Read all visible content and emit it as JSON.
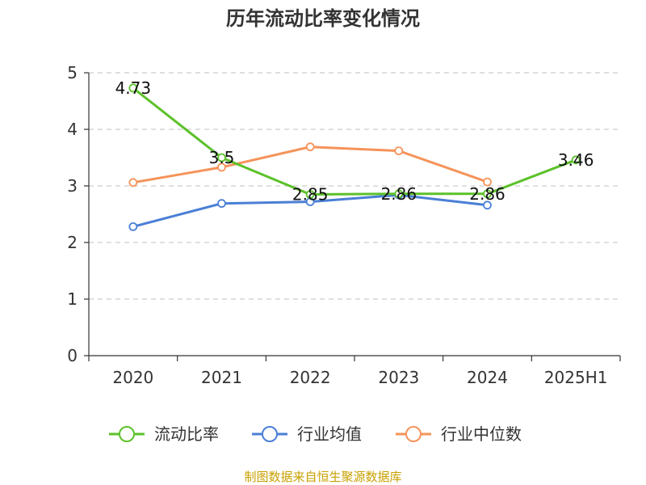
{
  "chart_data": {
    "type": "line",
    "title": "历年流动比率变化情况",
    "categories": [
      "2020",
      "2021",
      "2022",
      "2023",
      "2024",
      "2025H1"
    ],
    "ylim": [
      0,
      5
    ],
    "yticks": [
      "0",
      "1",
      "2",
      "3",
      "4",
      "5"
    ],
    "grid": true,
    "legend_position": "bottom",
    "series": [
      {
        "name": "流动比率",
        "color": "#5cc12a",
        "values": [
          4.73,
          3.5,
          2.85,
          2.86,
          2.86,
          3.46
        ],
        "labels": [
          "4.73",
          "3.5",
          "2.85",
          "2.86",
          "2.86",
          "3.46"
        ]
      },
      {
        "name": "行业均值",
        "color": "#4a7fd6",
        "values": [
          2.28,
          2.69,
          2.72,
          2.84,
          2.66,
          null
        ]
      },
      {
        "name": "行业中位数",
        "color": "#f5935a",
        "values": [
          3.06,
          3.33,
          3.69,
          3.62,
          3.07,
          null
        ]
      }
    ]
  },
  "source": "制图数据来自恒生聚源数据库"
}
